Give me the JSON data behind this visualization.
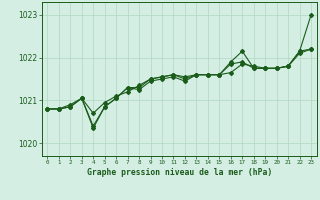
{
  "title": "Graphe pression niveau de la mer (hPa)",
  "background_color": "#d4eee4",
  "line_color": "#1a5c1a",
  "grid_color": "#b0d8c0",
  "xlim": [
    -0.5,
    23.5
  ],
  "ylim": [
    1019.7,
    1023.3
  ],
  "yticks": [
    1020,
    1021,
    1022,
    1023
  ],
  "xticks": [
    0,
    1,
    2,
    3,
    4,
    5,
    6,
    7,
    8,
    9,
    10,
    11,
    12,
    13,
    14,
    15,
    16,
    17,
    18,
    19,
    20,
    21,
    22,
    23
  ],
  "hours": [
    0,
    1,
    2,
    3,
    4,
    5,
    6,
    7,
    8,
    9,
    10,
    11,
    12,
    13,
    14,
    15,
    16,
    17,
    18,
    19,
    20,
    21,
    22,
    23
  ],
  "line1": [
    1020.8,
    1020.8,
    1020.9,
    1021.05,
    1020.7,
    1020.95,
    1021.1,
    1021.2,
    1021.35,
    1021.5,
    1021.55,
    1021.6,
    1021.55,
    1021.6,
    1021.6,
    1021.6,
    1021.65,
    1021.85,
    1021.8,
    1021.75,
    1021.75,
    1021.8,
    1022.15,
    1022.2
  ],
  "line2": [
    1020.8,
    1020.8,
    1020.85,
    1021.05,
    1020.4,
    1020.85,
    1021.05,
    1021.3,
    1021.25,
    1021.45,
    1021.5,
    1021.55,
    1021.45,
    1021.6,
    1021.6,
    1021.6,
    1021.85,
    1021.9,
    1021.75,
    1021.75,
    1021.75,
    1021.8,
    1022.15,
    1023.0
  ],
  "line3": [
    1020.8,
    1020.8,
    1020.85,
    1021.05,
    1020.35,
    1020.85,
    1021.05,
    1021.3,
    1021.3,
    1021.5,
    1021.55,
    1021.6,
    1021.5,
    1021.6,
    1021.6,
    1021.6,
    1021.9,
    1022.15,
    1021.75,
    1021.75,
    1021.75,
    1021.8,
    1022.1,
    1022.2
  ],
  "figsize": [
    3.2,
    2.0
  ],
  "dpi": 100
}
